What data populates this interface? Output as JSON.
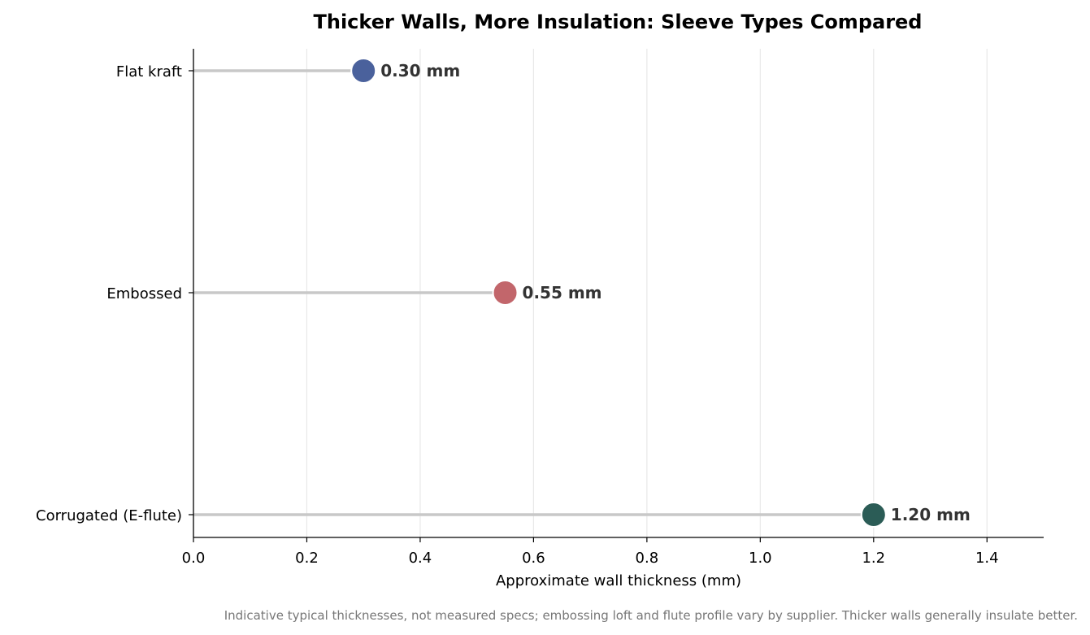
{
  "chart_data": {
    "type": "lollipop",
    "title": "Thicker Walls, More Insulation: Sleeve Types Compared",
    "xlabel": "Approximate wall thickness (mm)",
    "ylabel": "",
    "xlim": [
      0,
      1.5
    ],
    "xticks": [
      "0.0",
      "0.2",
      "0.4",
      "0.6",
      "0.8",
      "1.0",
      "1.2",
      "1.4"
    ],
    "grid": "vertical",
    "categories": [
      "Flat kraft",
      "Embossed",
      "Corrugated (E-flute)"
    ],
    "values": [
      0.3,
      0.55,
      1.2
    ],
    "value_labels": [
      "0.30 mm",
      "0.55 mm",
      "1.20 mm"
    ],
    "colors": [
      "#4a619c",
      "#c2666b",
      "#2b5c56"
    ],
    "stem_color": "#c8c8c8",
    "footnote": "Indicative typical thicknesses, not measured specs; embossing loft and flute profile vary by supplier. Thicker walls generally insulate better."
  }
}
